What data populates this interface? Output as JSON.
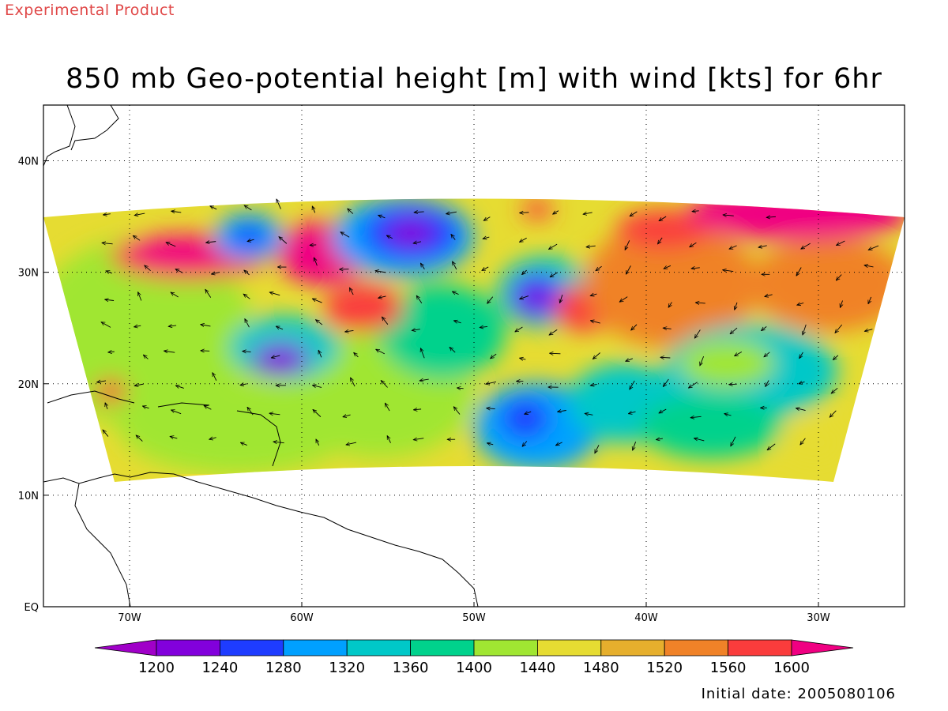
{
  "header": {
    "product_tag": "Experimental Product",
    "title": "850 mb Geo-potential height [m] with wind [kts] for 6hr"
  },
  "footer": {
    "initial_date": "Initial date: 2005080106"
  },
  "map": {
    "lon_range": [
      -75,
      -25
    ],
    "lat_range": [
      0,
      45
    ],
    "lon_ticks": [
      {
        "lon": -70,
        "label": "70W"
      },
      {
        "lon": -60,
        "label": "60W"
      },
      {
        "lon": -50,
        "label": "50W"
      },
      {
        "lon": -40,
        "label": "40W"
      },
      {
        "lon": -30,
        "label": "30W"
      }
    ],
    "lat_ticks": [
      {
        "lat": 0,
        "label": "EQ"
      },
      {
        "lat": 10,
        "label": "10N"
      },
      {
        "lat": 20,
        "label": "20N"
      },
      {
        "lat": 30,
        "label": "30N"
      },
      {
        "lat": 40,
        "label": "40N"
      }
    ],
    "grid": true
  },
  "colorbar": {
    "levels": [
      1200,
      1240,
      1280,
      1320,
      1360,
      1400,
      1440,
      1480,
      1520,
      1560,
      1600
    ],
    "colors": [
      "#a000c8",
      "#8200dc",
      "#1e3cff",
      "#00a0ff",
      "#00c8c8",
      "#00d28c",
      "#a0e632",
      "#e6dc32",
      "#e6af2d",
      "#f08228",
      "#fa3c3c",
      "#f00082"
    ]
  }
}
